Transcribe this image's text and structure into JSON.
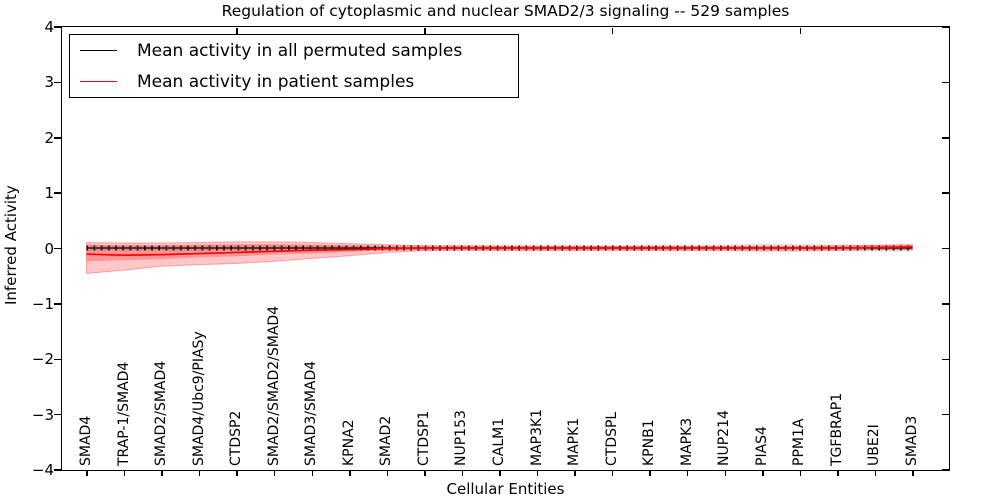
{
  "chart_data": {
    "type": "line",
    "title": "Regulation of cytoplasmic and nuclear SMAD2/3 signaling -- 529 samples",
    "xlabel": "Cellular Entities",
    "ylabel": "Inferred Activity",
    "ylim": [
      -4,
      4
    ],
    "yticks": [
      -4,
      -3,
      -2,
      -1,
      0,
      1,
      2,
      3,
      4
    ],
    "grid": "off",
    "legend_position": "upper left",
    "top_axis_tick_category_indices": [
      4,
      9,
      14,
      19
    ],
    "categories": [
      "SMAD4",
      "TRAP-1/SMAD4",
      "SMAD2/SMAD4",
      "SMAD4/Ubc9/PIASy",
      "CTDSP2",
      "SMAD2/SMAD2/SMAD4",
      "SMAD3/SMAD4",
      "KPNA2",
      "SMAD2",
      "CTDSP1",
      "NUP153",
      "CALM1",
      "MAP3K1",
      "MAPK1",
      "CTDSPL",
      "KPNB1",
      "MAPK3",
      "NUP214",
      "PIAS4",
      "PPM1A",
      "TGFBRAP1",
      "UBE2I",
      "SMAD3"
    ],
    "series": [
      {
        "name": "Mean activity in all permuted samples",
        "color": "#000000",
        "marker": "vertical-dash",
        "values": [
          0,
          0,
          0,
          0,
          0,
          0,
          0,
          0,
          0,
          0,
          0,
          0,
          0,
          0,
          0,
          0,
          0,
          0,
          0,
          0,
          0,
          0,
          0
        ]
      },
      {
        "name": "Mean activity in patient samples",
        "color": "#ff0000",
        "marker": "none",
        "values": [
          -0.11,
          -0.13,
          -0.12,
          -0.1,
          -0.08,
          -0.06,
          -0.04,
          -0.03,
          -0.01,
          0,
          0,
          0,
          0,
          0,
          0,
          0,
          0,
          0,
          0,
          0,
          0,
          0.01,
          0.02
        ]
      }
    ],
    "bands": [
      {
        "name": "permuted-samples-range",
        "color": "rgba(0,0,0,0.13)",
        "stroke": "none",
        "upper": [
          0.05,
          0.05,
          0.05,
          0.05,
          0.05,
          0.05,
          0.05,
          0.05,
          0.05,
          0.05,
          0.05,
          0.06,
          0.06,
          0.06,
          0.05,
          0.06,
          0.06,
          0.06,
          0.08,
          0.07,
          0.06,
          0.06,
          0.06
        ],
        "lower": [
          -0.05,
          -0.05,
          -0.05,
          -0.05,
          -0.05,
          -0.05,
          -0.05,
          -0.05,
          -0.05,
          -0.05,
          -0.05,
          -0.06,
          -0.06,
          -0.06,
          -0.05,
          -0.06,
          -0.06,
          -0.06,
          -0.08,
          -0.07,
          -0.06,
          -0.06,
          -0.06
        ]
      },
      {
        "name": "patient-samples-range-outer",
        "color": "rgba(255,0,0,0.22)",
        "stroke": "rgba(255,0,0,0.30)",
        "upper": [
          0.1,
          0.09,
          0.09,
          0.1,
          0.11,
          0.11,
          0.1,
          0.08,
          0.06,
          0.04,
          0.04,
          0.03,
          0.03,
          0.03,
          0.03,
          0.03,
          0.03,
          0.03,
          0.03,
          0.03,
          0.04,
          0.05,
          0.06
        ],
        "lower": [
          -0.46,
          -0.4,
          -0.33,
          -0.3,
          -0.28,
          -0.24,
          -0.19,
          -0.14,
          -0.08,
          -0.05,
          -0.04,
          -0.04,
          -0.04,
          -0.04,
          -0.04,
          -0.04,
          -0.04,
          -0.04,
          -0.04,
          -0.04,
          -0.04,
          -0.03,
          -0.03
        ]
      },
      {
        "name": "patient-samples-range-inner",
        "color": "rgba(255,0,0,0.25)",
        "stroke": "none",
        "upper": [
          0.06,
          0.05,
          0.05,
          0.06,
          0.07,
          0.07,
          0.06,
          0.05,
          0.03,
          0.02,
          0.02,
          0.02,
          0.02,
          0.02,
          0.02,
          0.02,
          0.02,
          0.02,
          0.02,
          0.02,
          0.02,
          0.03,
          0.04
        ],
        "lower": [
          -0.24,
          -0.22,
          -0.2,
          -0.17,
          -0.15,
          -0.12,
          -0.1,
          -0.07,
          -0.04,
          -0.03,
          -0.02,
          -0.02,
          -0.02,
          -0.02,
          -0.02,
          -0.02,
          -0.02,
          -0.02,
          -0.02,
          -0.02,
          -0.02,
          -0.02,
          -0.01
        ]
      }
    ]
  }
}
